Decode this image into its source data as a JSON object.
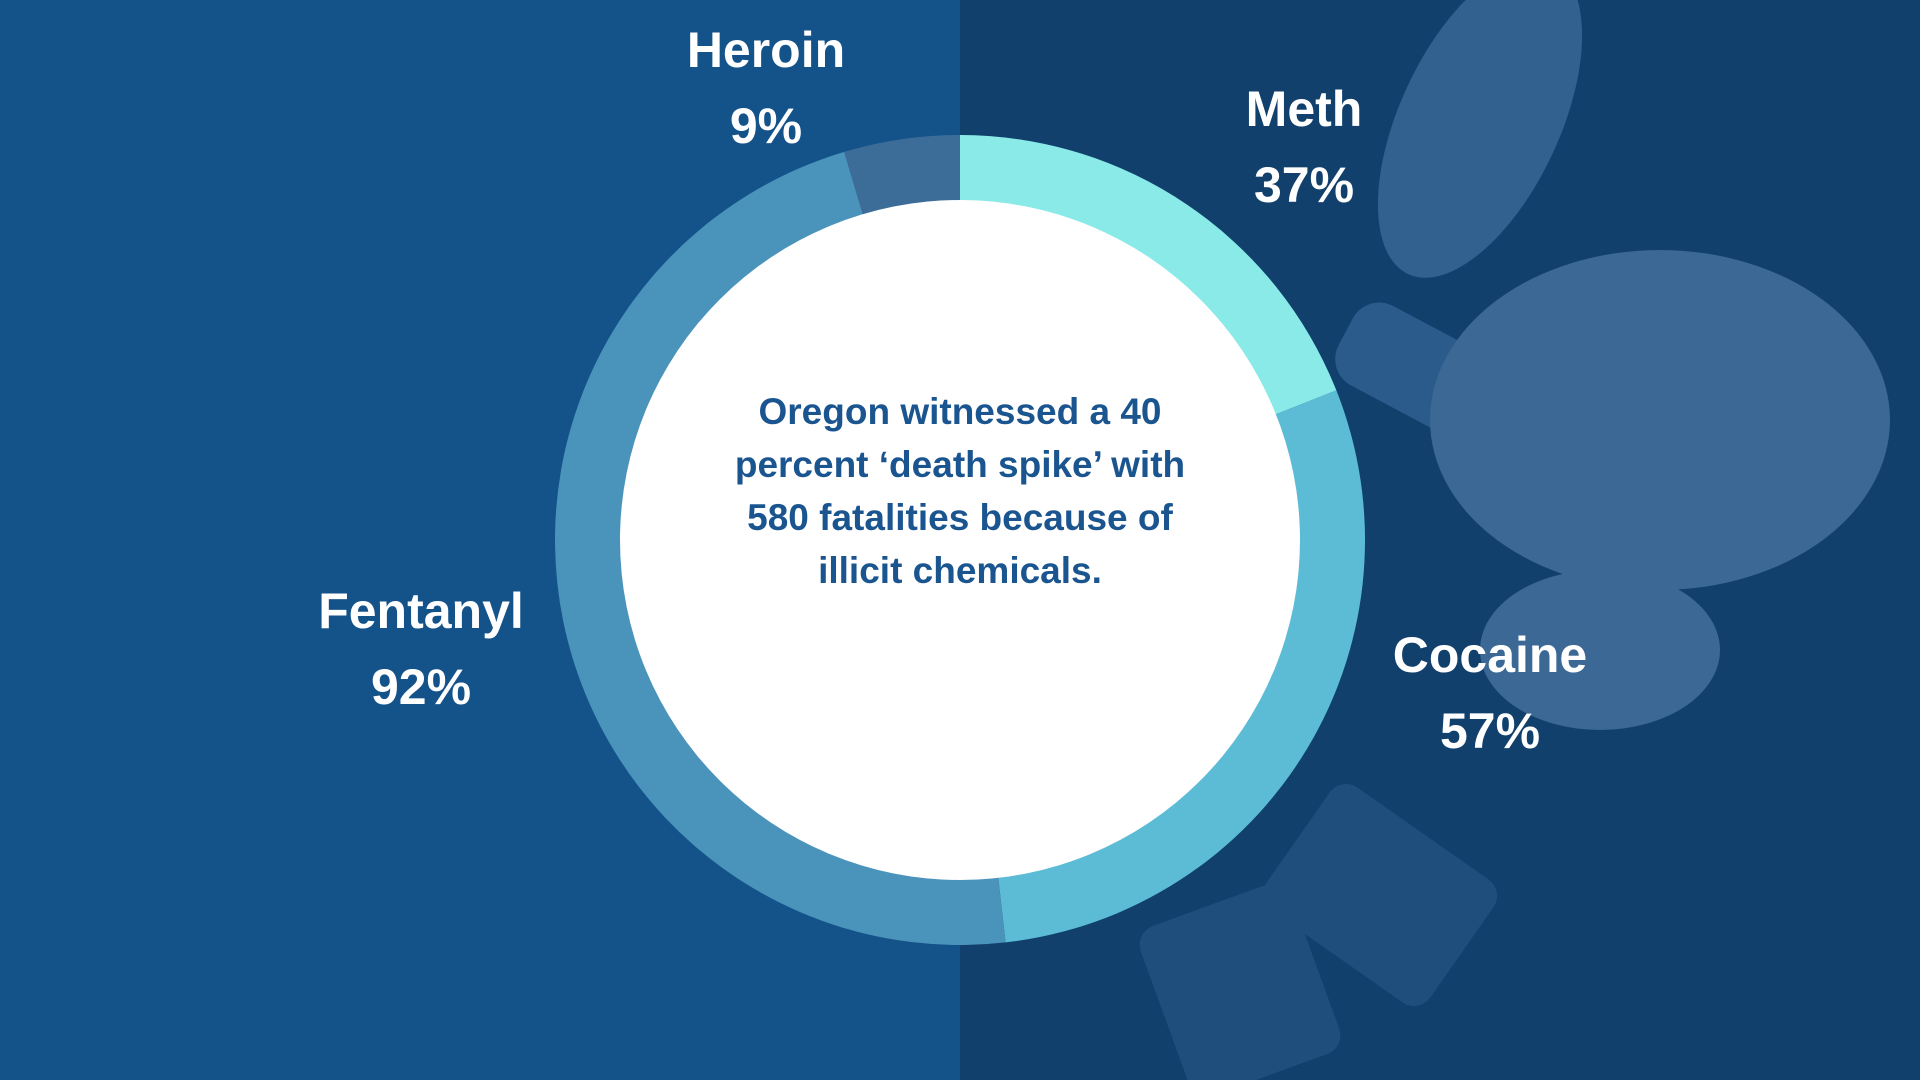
{
  "chart_data": {
    "type": "donut",
    "categories": [
      "Meth",
      "Cocaine",
      "Fentanyl",
      "Heroin"
    ],
    "values": [
      37,
      57,
      92,
      9
    ],
    "value_labels": [
      "37%",
      "57%",
      "92%",
      "9%"
    ],
    "colors": [
      "#8aeae8",
      "#5cbcd5",
      "#4a93bb",
      "#3c6c98"
    ],
    "center_text": "Oregon witnessed a 40 percent ‘death spike’ with 580 fatalities because of illicit chemicals."
  }
}
